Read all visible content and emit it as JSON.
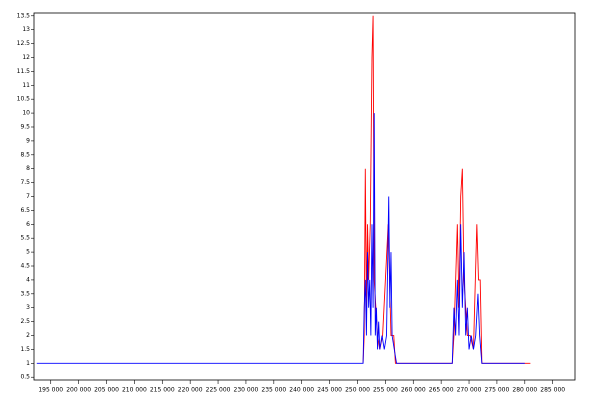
{
  "chart_data": {
    "type": "line",
    "xlim": [
      192000,
      289000
    ],
    "ylim": [
      0.4,
      13.6
    ],
    "xticks": [
      {
        "value": 195000,
        "label": "195 000"
      },
      {
        "value": 200000,
        "label": "200 000"
      },
      {
        "value": 205000,
        "label": "205 000"
      },
      {
        "value": 210000,
        "label": "210 000"
      },
      {
        "value": 215000,
        "label": "215 000"
      },
      {
        "value": 220000,
        "label": "220 000"
      },
      {
        "value": 225000,
        "label": "225 000"
      },
      {
        "value": 230000,
        "label": "230 000"
      },
      {
        "value": 235000,
        "label": "235 000"
      },
      {
        "value": 240000,
        "label": "240 000"
      },
      {
        "value": 245000,
        "label": "245 000"
      },
      {
        "value": 250000,
        "label": "250 000"
      },
      {
        "value": 255000,
        "label": "255 000"
      },
      {
        "value": 260000,
        "label": "260 000"
      },
      {
        "value": 265000,
        "label": "265 000"
      },
      {
        "value": 270000,
        "label": "270 000"
      },
      {
        "value": 275000,
        "label": "275 000"
      },
      {
        "value": 280000,
        "label": "280 000"
      },
      {
        "value": 285000,
        "label": "285 000"
      }
    ],
    "yticks": [
      0.5,
      1,
      1.5,
      2,
      2.5,
      3,
      3.5,
      4,
      4.5,
      5,
      5.5,
      6,
      6.5,
      7,
      7.5,
      8,
      8.5,
      9,
      9.5,
      10,
      10.5,
      11,
      11.5,
      12,
      12.5,
      13,
      13.5
    ],
    "series": [
      {
        "color": "#ff0000",
        "x": [
          251000,
          251200,
          251400,
          251600,
          251800,
          252000,
          252300,
          252600,
          252800,
          253000,
          253300,
          253600,
          254000,
          254500,
          255000,
          255500,
          256000,
          256500,
          256800,
          267000,
          267300,
          267600,
          267900,
          268200,
          268500,
          268800,
          269100,
          269400,
          269700,
          270200,
          270800,
          271400,
          271700,
          272000,
          272300,
          281000
        ],
        "values": [
          1,
          2,
          8,
          3,
          6,
          4,
          6,
          12,
          13.5,
          4,
          3,
          2,
          1.5,
          2,
          4,
          6,
          2,
          2,
          1,
          1,
          2,
          4,
          6,
          3,
          7,
          8,
          4,
          3,
          2,
          2,
          1.5,
          6,
          4,
          4,
          1,
          1
        ]
      },
      {
        "color": "#0000ff",
        "x": [
          192500,
          251000,
          251200,
          251400,
          251600,
          251800,
          252000,
          252200,
          252400,
          252600,
          252800,
          253000,
          253200,
          253400,
          253600,
          253800,
          254000,
          254400,
          254800,
          255200,
          255600,
          255800,
          256000,
          256200,
          256600,
          257000,
          267000,
          267300,
          267600,
          267900,
          268200,
          268500,
          268800,
          269100,
          269400,
          269700,
          270000,
          270400,
          270800,
          271200,
          271600,
          271900,
          272300,
          280000
        ],
        "values": [
          1,
          1,
          3,
          4,
          2,
          5,
          3,
          4,
          2,
          6,
          3,
          10,
          2,
          3,
          1.5,
          2.5,
          1.5,
          2,
          1.5,
          2,
          7,
          3,
          5,
          2,
          1.5,
          1,
          1,
          3,
          2,
          4,
          2,
          6,
          3,
          5,
          2,
          3,
          1.5,
          2,
          1.5,
          2,
          3.5,
          2,
          1,
          1
        ]
      }
    ]
  }
}
